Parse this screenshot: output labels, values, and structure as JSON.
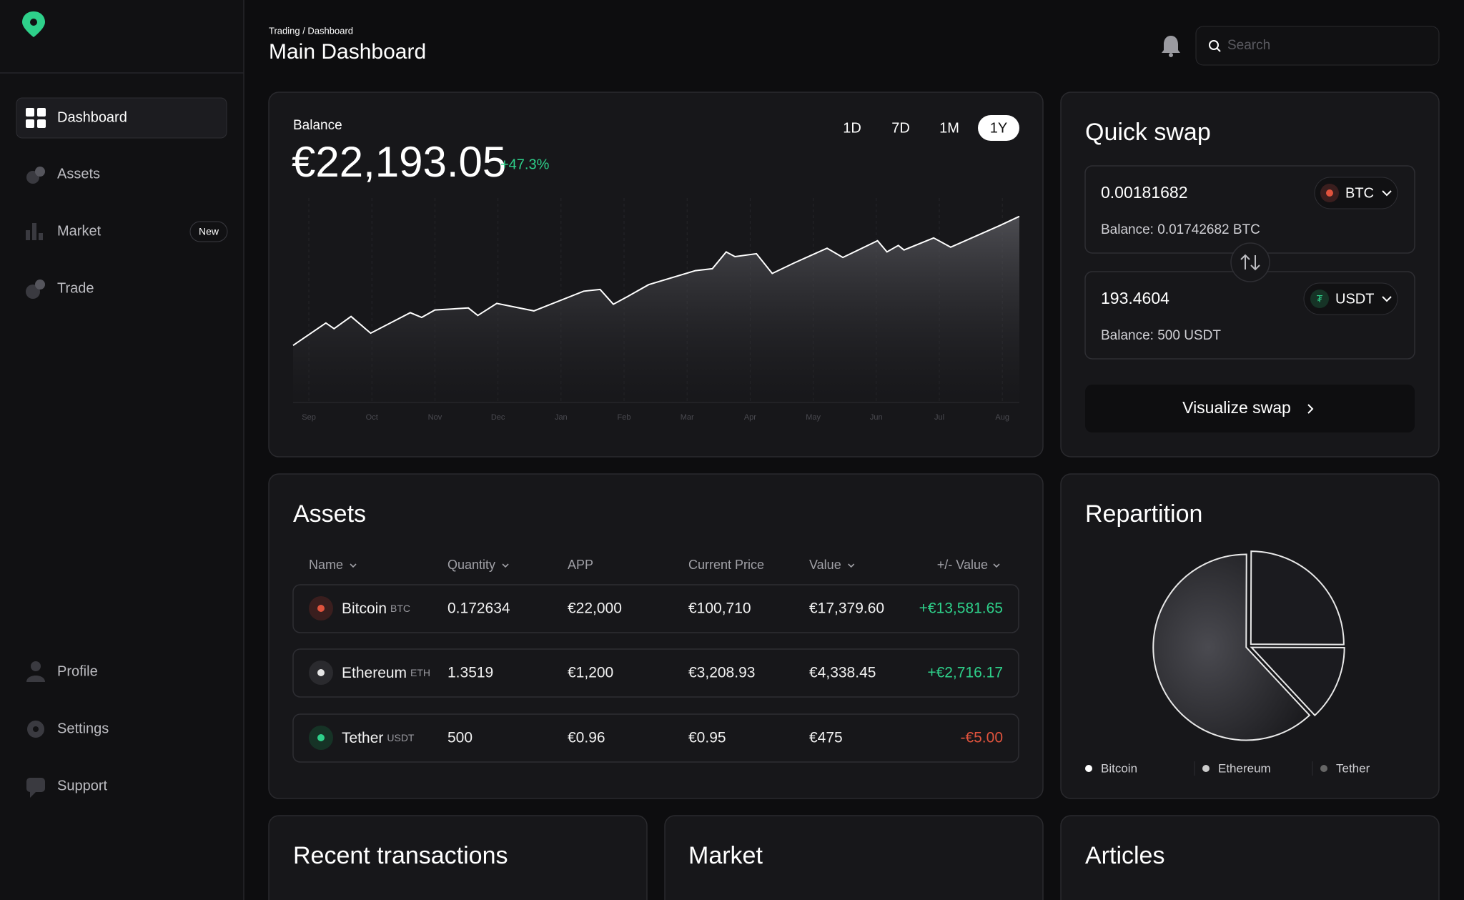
{
  "sidebar": {
    "nav": [
      "Dashboard",
      "Assets",
      "Market",
      "Trade"
    ],
    "badge": "New",
    "bottom_nav": [
      "Profile",
      "Settings",
      "Support"
    ]
  },
  "header": {
    "breadcrumb": "Trading / Dashboard",
    "title": "Main Dashboard",
    "search_placeholder": "Search"
  },
  "balance": {
    "label": "Balance",
    "amount": "€22,193.05",
    "change": "+47.3%",
    "periods": [
      "1D",
      "7D",
      "1M",
      "1Y"
    ],
    "active_period": "1Y"
  },
  "chart_data": [
    {
      "type": "line",
      "color": "#ffffff",
      "x": [
        -0.25,
        0.27,
        0.4,
        0.67,
        0.98,
        1.61,
        1.79,
        2.0,
        2.53,
        2.68,
        2.98,
        3.57,
        4.36,
        4.62,
        4.83,
        5.05,
        5.39,
        6.13,
        6.4,
        6.62,
        6.76,
        7.1,
        7.35,
        7.69,
        8.22,
        8.47,
        9.02,
        9.17,
        9.35,
        9.44,
        9.91,
        10.18,
        10.92,
        11.27
      ],
      "values": [
        28.9,
        40.3,
        37.4,
        43.6,
        35.1,
        45.5,
        43.1,
        46.9,
        47.9,
        44.1,
        50.2,
        46.4,
        56.4,
        57.3,
        49.8,
        53.6,
        59.7,
        66.8,
        67.8,
        76.3,
        73.9,
        75.4,
        65.4,
        70.6,
        78.2,
        73.5,
        82.0,
        76.3,
        79.6,
        77.3,
        83.4,
        78.7,
        89.1,
        94.3
      ],
      "xlim": [
        -0.25,
        11.27
      ],
      "ylim": [
        0,
        100
      ],
      "xticks": [
        {
          "value": 0,
          "label": "Sep"
        },
        {
          "value": 1,
          "label": "Oct"
        },
        {
          "value": 2,
          "label": "Nov"
        },
        {
          "value": 3,
          "label": "Dec"
        },
        {
          "value": 4,
          "label": "Jan"
        },
        {
          "value": 5,
          "label": "Feb"
        },
        {
          "value": 6,
          "label": "Mar"
        },
        {
          "value": 7,
          "label": "Apr"
        },
        {
          "value": 8,
          "label": "May"
        },
        {
          "value": 9,
          "label": "Jun"
        },
        {
          "value": 10,
          "label": "Jul"
        },
        {
          "value": 11,
          "label": "Aug"
        }
      ],
      "grid": true
    },
    {
      "type": "pie",
      "title": "Repartition",
      "categories": [
        "Bitcoin",
        "Ethereum",
        "Tether"
      ],
      "values": [
        62,
        25,
        13
      ],
      "colors": [
        "#ffffff",
        "#cccccc",
        "#666666"
      ]
    }
  ],
  "quick_swap": {
    "title": "Quick swap",
    "from_amount": "0.00181682",
    "from_currency": "BTC",
    "from_balance": "Balance: 0.01742682 BTC",
    "to_amount": "193.4604",
    "to_currency": "USDT",
    "to_balance": "Balance: 500 USDT",
    "button": "Visualize swap"
  },
  "assets": {
    "title": "Assets",
    "columns": [
      "Name",
      "Quantity",
      "APP",
      "Current Price",
      "Value",
      "+/- Value"
    ],
    "rows": [
      [
        "Bitcoin",
        "BTC",
        "0.172634",
        "€22,000",
        "€100,710",
        "€17,379.60",
        "+€13,581.65"
      ],
      [
        "Ethereum",
        "ETH",
        "1.3519",
        "€1,200",
        "€3,208.93",
        "€4,338.45",
        "+€2,716.17"
      ],
      [
        "Tether",
        "USDT",
        "500",
        "€0.96",
        "€0.95",
        "€475",
        "-€5.00"
      ]
    ]
  },
  "sections": [
    "Recent transactions",
    "Market",
    "Articles"
  ]
}
